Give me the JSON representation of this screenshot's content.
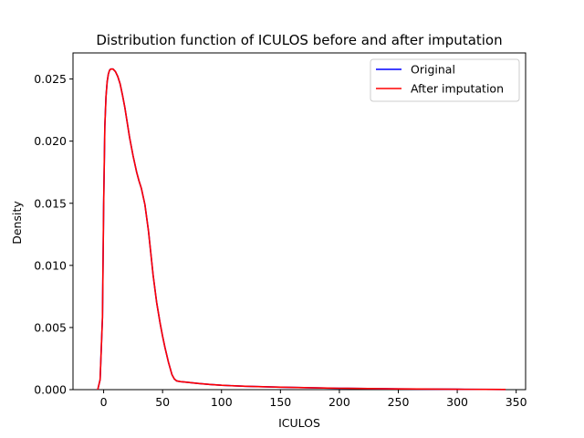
{
  "chart_data": {
    "type": "line",
    "title": "Distribution function of ICULOS before and after imputation",
    "xlabel": "ICULOS",
    "ylabel": "Density",
    "xlim": [
      -26,
      358
    ],
    "ylim": [
      0,
      0.0271
    ],
    "xticks": [
      0,
      50,
      100,
      150,
      200,
      250,
      300,
      350
    ],
    "yticks": [
      0.0,
      0.005,
      0.01,
      0.015,
      0.02,
      0.025
    ],
    "ytick_labels": [
      "0.000",
      "0.005",
      "0.010",
      "0.015",
      "0.020",
      "0.025"
    ],
    "grid": false,
    "legend_position": "top-right",
    "x": [
      -5,
      -3,
      -1,
      0,
      1,
      2,
      3,
      4,
      5,
      6,
      7,
      8,
      9,
      10,
      12,
      14,
      16,
      18,
      20,
      22,
      25,
      28,
      30,
      32,
      35,
      38,
      40,
      42,
      45,
      48,
      50,
      52,
      55,
      58,
      60,
      62,
      65,
      70,
      80,
      90,
      100,
      120,
      150,
      180,
      200,
      250,
      300,
      341
    ],
    "series": [
      {
        "name": "Original",
        "color": "#0000ff",
        "values": [
          0.0,
          0.0008,
          0.0058,
          0.0148,
          0.0212,
          0.0236,
          0.0248,
          0.0254,
          0.0257,
          0.0258,
          0.0258,
          0.0258,
          0.0257,
          0.0256,
          0.0252,
          0.0246,
          0.0237,
          0.0227,
          0.0215,
          0.0203,
          0.0188,
          0.0175,
          0.0168,
          0.0162,
          0.0149,
          0.0128,
          0.011,
          0.0092,
          0.007,
          0.0053,
          0.0043,
          0.0034,
          0.0022,
          0.0012,
          0.00085,
          0.0007,
          0.00065,
          0.0006,
          0.0005,
          0.00042,
          0.00035,
          0.00027,
          0.0002,
          0.00014,
          0.00011,
          6e-05,
          3e-05,
          1e-05
        ]
      },
      {
        "name": "After imputation",
        "color": "#ff0000",
        "values": [
          0.0,
          0.0008,
          0.0058,
          0.0148,
          0.0212,
          0.0236,
          0.0248,
          0.0254,
          0.0257,
          0.0258,
          0.0258,
          0.0258,
          0.0257,
          0.0256,
          0.0252,
          0.0246,
          0.0237,
          0.0227,
          0.0215,
          0.0203,
          0.0188,
          0.0175,
          0.0168,
          0.0162,
          0.0149,
          0.0128,
          0.011,
          0.0092,
          0.007,
          0.0053,
          0.0043,
          0.0034,
          0.0022,
          0.0012,
          0.00085,
          0.0007,
          0.00065,
          0.0006,
          0.0005,
          0.00042,
          0.00035,
          0.00027,
          0.0002,
          0.00014,
          0.00011,
          6e-05,
          3e-05,
          1e-05
        ]
      }
    ]
  }
}
